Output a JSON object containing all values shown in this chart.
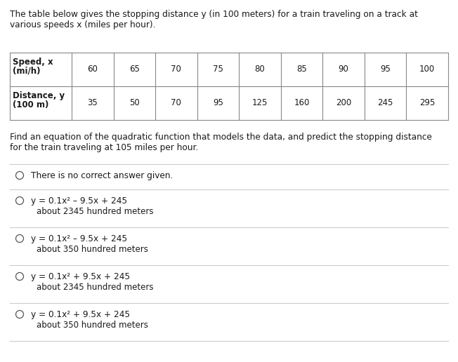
{
  "bg_color": "#ffffff",
  "text_color": "#1a1a1a",
  "intro_text_line1": "The table below gives the stopping distance y (in 100 meters) for a train traveling on a track at",
  "intro_text_line2": "various speeds x (miles per hour).",
  "table_headers": [
    "Speed, x\n(mi/h)",
    "60",
    "65",
    "70",
    "75",
    "80",
    "85",
    "90",
    "95",
    "100"
  ],
  "table_row2_label": "Distance, y\n(100 m)",
  "table_row2_values": [
    "35",
    "50",
    "70",
    "95",
    "125",
    "160",
    "200",
    "245",
    "295"
  ],
  "question_line1": "Find an equation of the quadratic function that models the data, and predict the stopping distance",
  "question_line2": "for the train traveling at 105 miles per hour.",
  "options": [
    {
      "line1": "There is no correct answer given.",
      "line2": null
    },
    {
      "line1": "y = 0.1x² – 9.5x + 245",
      "line2": "about 2345 hundred meters"
    },
    {
      "line1": "y = 0.1x² – 9.5x + 245",
      "line2": "about 350 hundred meters"
    },
    {
      "line1": "y = 0.1x² + 9.5x + 245",
      "line2": "about 2345 hundred meters"
    },
    {
      "line1": "y = 0.1x² + 9.5x + 245",
      "line2": "about 350 hundred meters"
    }
  ],
  "line_color": "#cccccc",
  "table_line_color": "#888888",
  "circle_color": "#555555",
  "font_size_main": 8.5,
  "font_size_table": 8.5
}
